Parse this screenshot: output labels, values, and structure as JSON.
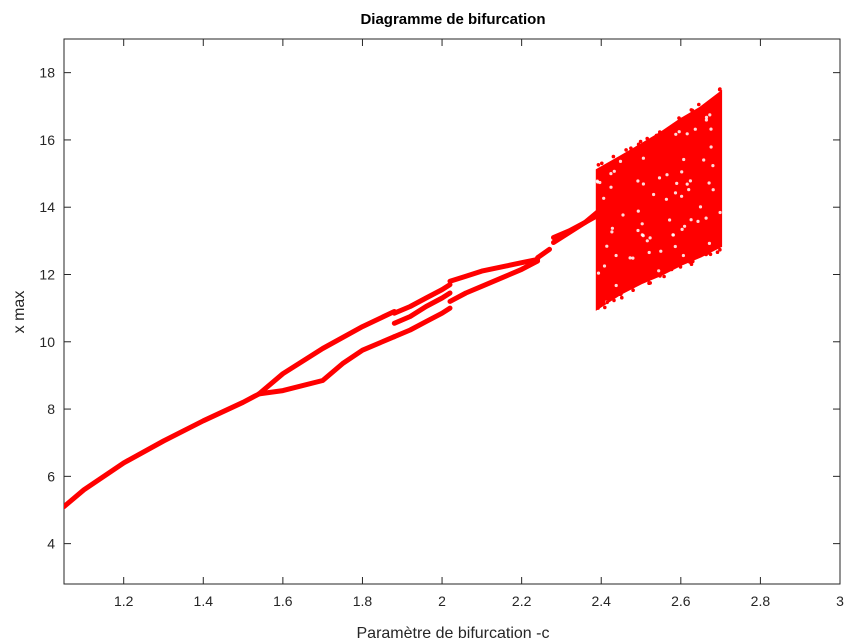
{
  "chart_data": {
    "type": "scatter",
    "title": "Diagramme de bifurcation",
    "xlabel": "Paramètre de bifurcation -c",
    "ylabel": "x max",
    "xlim": [
      1.05,
      3.0
    ],
    "ylim": [
      2.8,
      19.0
    ],
    "xticks": [
      1.2,
      1.4,
      1.6,
      1.8,
      2.0,
      2.2,
      2.4,
      2.6,
      2.8,
      3.0
    ],
    "xtick_labels": [
      "1.2",
      "1.4",
      "1.6",
      "1.8",
      "2",
      "2.2",
      "2.4",
      "2.6",
      "2.8",
      "3"
    ],
    "yticks": [
      4,
      6,
      8,
      10,
      12,
      14,
      16,
      18
    ],
    "ytick_labels": [
      "4",
      "6",
      "8",
      "10",
      "12",
      "14",
      "16",
      "18"
    ],
    "grid": false,
    "marker_color": "#ff0000",
    "branches": [
      {
        "x": [
          1.05,
          1.1,
          1.2,
          1.3,
          1.4,
          1.5,
          1.54
        ],
        "y": [
          5.1,
          5.6,
          6.4,
          7.05,
          7.65,
          8.2,
          8.45
        ]
      },
      {
        "x": [
          1.54,
          1.6,
          1.7,
          1.8,
          1.88
        ],
        "y": [
          8.45,
          9.05,
          9.8,
          10.45,
          10.9
        ]
      },
      {
        "x": [
          1.54,
          1.6,
          1.7,
          1.75,
          1.8,
          1.88
        ],
        "y": [
          8.45,
          8.55,
          8.85,
          9.35,
          9.75,
          10.15
        ]
      },
      {
        "x": [
          1.88,
          1.92,
          1.96,
          2.0,
          2.02
        ],
        "y": [
          10.85,
          11.05,
          11.3,
          11.55,
          11.7
        ]
      },
      {
        "x": [
          1.88,
          1.92,
          1.96,
          2.0,
          2.02
        ],
        "y": [
          10.55,
          10.75,
          11.05,
          11.3,
          11.45
        ]
      },
      {
        "x": [
          1.88,
          1.92,
          1.96,
          2.0,
          2.02
        ],
        "y": [
          10.15,
          10.35,
          10.6,
          10.85,
          11.0
        ]
      },
      {
        "x": [
          2.02,
          2.06,
          2.1,
          2.16,
          2.2,
          2.24
        ],
        "y": [
          11.8,
          11.95,
          12.1,
          12.25,
          12.35,
          12.45
        ]
      },
      {
        "x": [
          2.02,
          2.06,
          2.1,
          2.16,
          2.2,
          2.24
        ],
        "y": [
          11.2,
          11.45,
          11.65,
          11.95,
          12.15,
          12.4
        ]
      },
      {
        "x": [
          2.24,
          2.27
        ],
        "y": [
          12.5,
          12.75
        ]
      },
      {
        "x": [
          2.28,
          2.32,
          2.36,
          2.39
        ],
        "y": [
          12.95,
          13.25,
          13.55,
          13.85
        ]
      },
      {
        "x": [
          2.28,
          2.32,
          2.36,
          2.39
        ],
        "y": [
          13.1,
          13.3,
          13.55,
          13.75
        ]
      }
    ],
    "chaotic_band": {
      "x_start": 2.39,
      "x_end": 2.7,
      "upper": [
        [
          2.39,
          15.1
        ],
        [
          2.45,
          15.5
        ],
        [
          2.5,
          15.85
        ],
        [
          2.55,
          16.2
        ],
        [
          2.6,
          16.6
        ],
        [
          2.65,
          16.95
        ],
        [
          2.7,
          17.4
        ]
      ],
      "lower": [
        [
          2.39,
          11.0
        ],
        [
          2.45,
          11.45
        ],
        [
          2.5,
          11.75
        ],
        [
          2.55,
          12.0
        ],
        [
          2.6,
          12.3
        ],
        [
          2.65,
          12.55
        ],
        [
          2.7,
          12.85
        ]
      ]
    }
  }
}
